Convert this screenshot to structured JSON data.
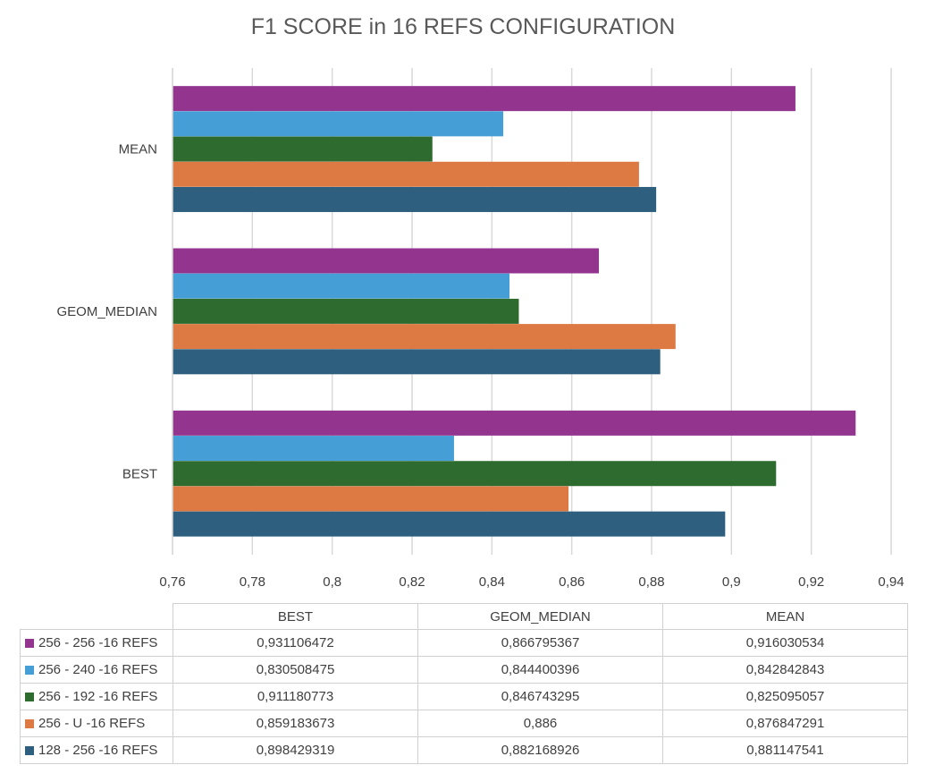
{
  "chart_data": {
    "type": "bar",
    "orientation": "horizontal",
    "title": "F1 SCORE in 16 REFS CONFIGURATION",
    "categories": [
      "BEST",
      "GEOM_MEDIAN",
      "MEAN"
    ],
    "x_ticks": [
      "0,76",
      "0,78",
      "0,8",
      "0,82",
      "0,84",
      "0,86",
      "0,88",
      "0,9",
      "0,92",
      "0,94"
    ],
    "xlim": [
      0.76,
      0.94
    ],
    "grid": true,
    "legend": "data-table",
    "series": [
      {
        "name": "256 - 256 -16 REFS",
        "color": "#93348f",
        "values": [
          0.931106472,
          0.866795367,
          0.916030534
        ],
        "labels": [
          "0,931106472",
          "0,866795367",
          "0,916030534"
        ]
      },
      {
        "name": "256 - 240 -16 REFS",
        "color": "#459ed6",
        "values": [
          0.830508475,
          0.844400396,
          0.842842843
        ],
        "labels": [
          "0,830508475",
          "0,844400396",
          "0,842842843"
        ]
      },
      {
        "name": "256 - 192 -16 REFS",
        "color": "#2e6b2f",
        "values": [
          0.911180773,
          0.846743295,
          0.825095057
        ],
        "labels": [
          "0,911180773",
          "0,846743295",
          "0,825095057"
        ]
      },
      {
        "name": "256 - U -16 REFS",
        "color": "#dd7a44",
        "values": [
          0.859183673,
          0.886,
          0.876847291
        ],
        "labels": [
          "0,859183673",
          "0,886",
          "0,876847291"
        ]
      },
      {
        "name": "128 - 256 -16 REFS",
        "color": "#2e5f7f",
        "values": [
          0.898429319,
          0.882168926,
          0.881147541
        ],
        "labels": [
          "0,898429319",
          "0,882168926",
          "0,881147541"
        ]
      }
    ]
  }
}
